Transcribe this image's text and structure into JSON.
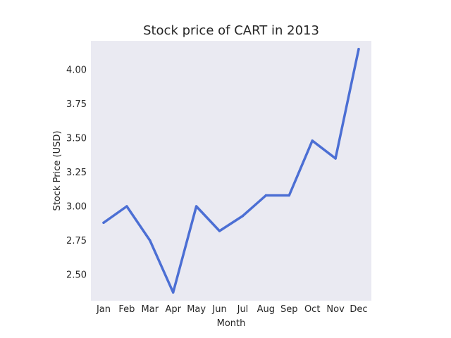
{
  "chart_data": {
    "type": "line",
    "title": "Stock price of CART in 2013",
    "xlabel": "Month",
    "ylabel": "Stock Price (USD)",
    "categories": [
      "Jan",
      "Feb",
      "Mar",
      "Apr",
      "May",
      "Jun",
      "Jul",
      "Aug",
      "Sep",
      "Oct",
      "Nov",
      "Dec"
    ],
    "values": [
      2.88,
      3.0,
      2.75,
      2.37,
      3.0,
      2.82,
      2.93,
      3.08,
      3.08,
      3.48,
      3.35,
      4.15
    ],
    "yticks": [
      2.5,
      2.75,
      3.0,
      3.25,
      3.5,
      3.75,
      4.0
    ],
    "ytick_labels": [
      "2.50",
      "2.75",
      "3.00",
      "3.25",
      "3.50",
      "3.75",
      "4.00"
    ],
    "ylim": [
      2.31,
      4.21
    ],
    "grid": false,
    "legend": "none",
    "colors": {
      "line": "#4c6fd4",
      "plot_background": "#eaeaf2",
      "text": "#262626"
    }
  }
}
